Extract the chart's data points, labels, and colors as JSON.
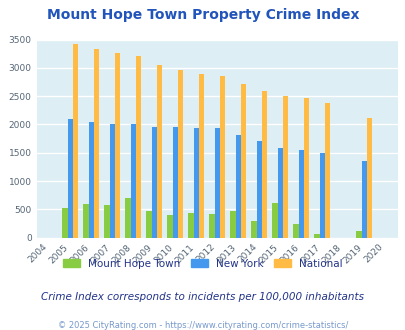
{
  "title": "Mount Hope Town Property Crime Index",
  "years": [
    2004,
    2005,
    2006,
    2007,
    2008,
    2009,
    2010,
    2011,
    2012,
    2013,
    2014,
    2015,
    2016,
    2017,
    2018,
    2019,
    2020
  ],
  "mount_hope": [
    0,
    530,
    600,
    570,
    700,
    470,
    400,
    430,
    420,
    475,
    290,
    620,
    240,
    70,
    0,
    110,
    0
  ],
  "new_york": [
    0,
    2090,
    2050,
    2000,
    2010,
    1950,
    1950,
    1930,
    1930,
    1820,
    1710,
    1590,
    1550,
    1500,
    0,
    1360,
    0
  ],
  "national": [
    0,
    3420,
    3340,
    3270,
    3210,
    3050,
    2960,
    2900,
    2860,
    2720,
    2600,
    2500,
    2470,
    2380,
    0,
    2110,
    0
  ],
  "mount_hope_color": "#88cc44",
  "new_york_color": "#4499ee",
  "national_color": "#ffbb44",
  "plot_bg_color": "#ddeef5",
  "ylim": [
    0,
    3500
  ],
  "yticks": [
    0,
    500,
    1000,
    1500,
    2000,
    2500,
    3000,
    3500
  ],
  "subtitle": "Crime Index corresponds to incidents per 100,000 inhabitants",
  "footer": "© 2025 CityRating.com - https://www.cityrating.com/crime-statistics/",
  "legend_labels": [
    "Mount Hope Town",
    "New York",
    "National"
  ],
  "title_color": "#2255bb",
  "subtitle_color": "#223388",
  "footer_color": "#7799cc",
  "bar_width": 0.25
}
